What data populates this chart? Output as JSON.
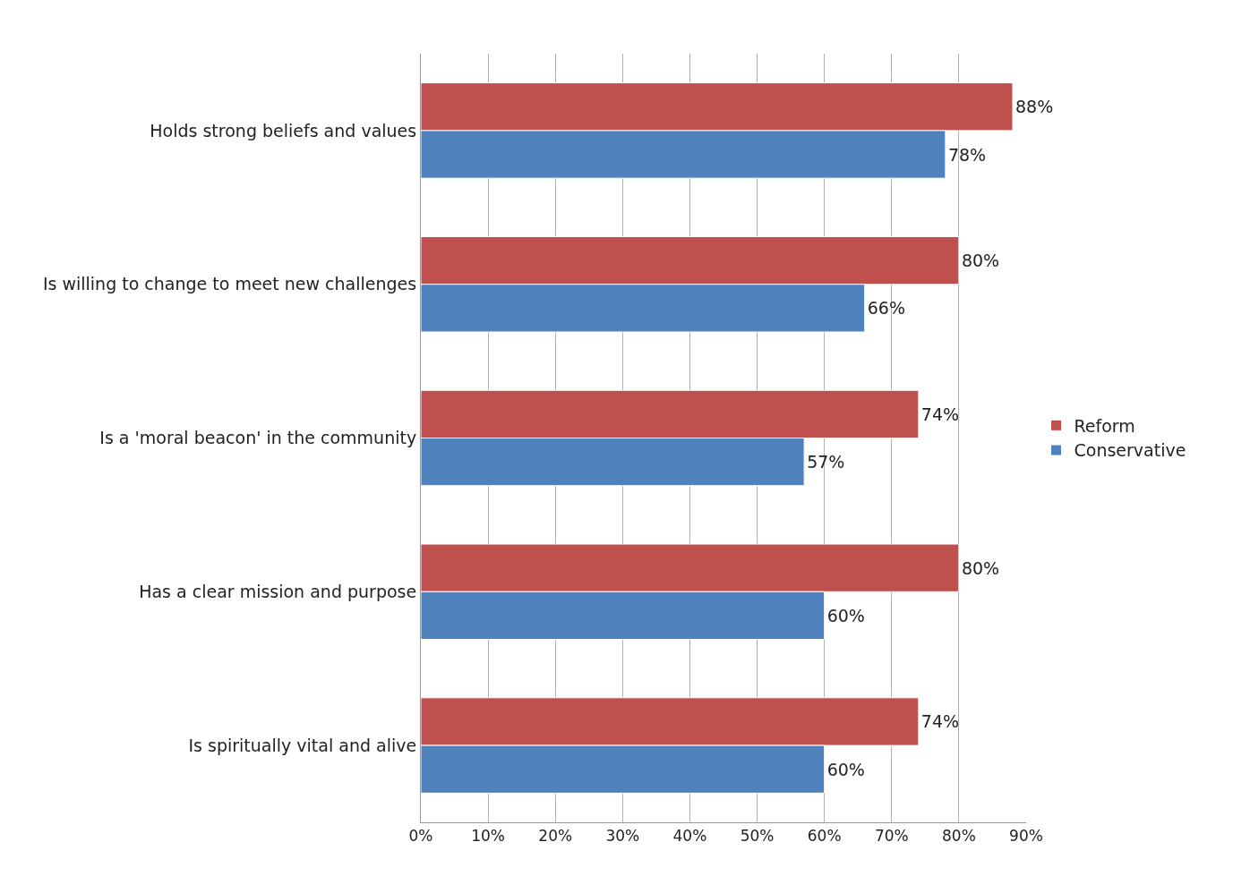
{
  "chart_data": {
    "type": "bar",
    "orientation": "horizontal",
    "categories": [
      "Holds strong beliefs and values",
      "Is willing to change to meet new challenges",
      "Is a 'moral beacon' in the community",
      "Has a clear mission and purpose",
      "Is spiritually vital and alive"
    ],
    "series": [
      {
        "name": "Reform",
        "color": "#c0504d",
        "values": [
          88,
          80,
          74,
          80,
          74
        ],
        "value_labels": [
          "88%",
          "80%",
          "74%",
          "80%",
          "74%"
        ]
      },
      {
        "name": "Conservative",
        "color": "#4f81bd",
        "values": [
          78,
          66,
          57,
          60,
          60
        ],
        "value_labels": [
          "78%",
          "66%",
          "57%",
          "60%",
          "60%"
        ]
      }
    ],
    "xlim": [
      0,
      90
    ],
    "xticks": [
      {
        "value": 0,
        "label": "0%"
      },
      {
        "value": 10,
        "label": "10%"
      },
      {
        "value": 20,
        "label": "20%"
      },
      {
        "value": 30,
        "label": "30%"
      },
      {
        "value": 40,
        "label": "40%"
      },
      {
        "value": 50,
        "label": "50%"
      },
      {
        "value": 60,
        "label": "60%"
      },
      {
        "value": 70,
        "label": "70%"
      },
      {
        "value": 80,
        "label": "80%"
      },
      {
        "value": 90,
        "label": "90%"
      }
    ],
    "grid": "x",
    "legend": "right"
  }
}
